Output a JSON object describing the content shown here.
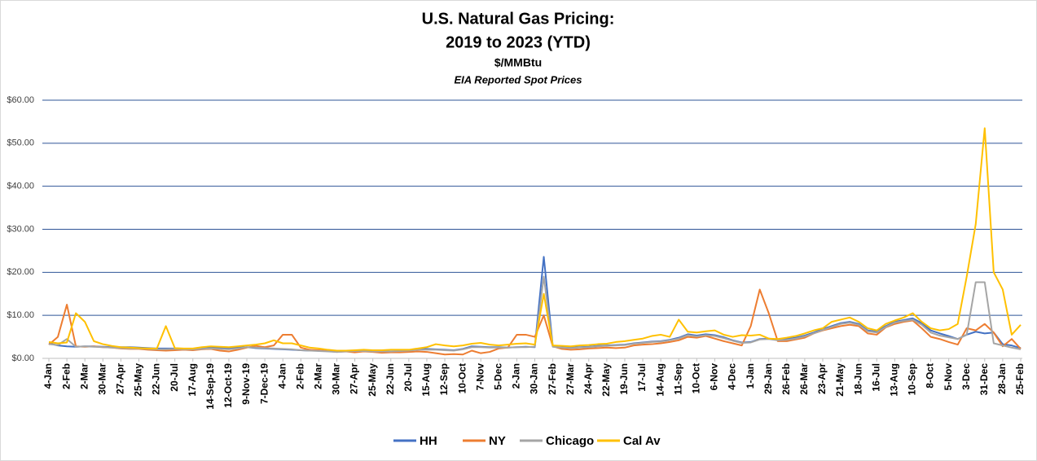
{
  "chart_data": {
    "type": "line",
    "title_lines": [
      "U.S. Natural Gas Pricing:",
      "2019 to 2023 (YTD)"
    ],
    "y_unit": "$/MMBtu",
    "subtitle": "EIA Reported Spot Prices",
    "categories": [
      "4-Jan",
      null,
      "2-Feb",
      null,
      "2-Mar",
      null,
      "30-Mar",
      null,
      "27-Apr",
      null,
      "25-May",
      null,
      "22-Jun",
      null,
      "20-Jul",
      null,
      "17-Aug",
      null,
      "14-Sep-19",
      null,
      "12-Oct-19",
      null,
      "9-Nov-19",
      null,
      "7-Dec-19",
      null,
      "4-Jan",
      null,
      "2-Feb",
      null,
      "2-Mar",
      null,
      "30-Mar",
      null,
      "27-Apr",
      null,
      "25-May",
      null,
      "22-Jun",
      null,
      "20-Jul",
      null,
      "15-Aug",
      null,
      "12-Sep",
      null,
      "10-Oct",
      null,
      "7-Nov",
      null,
      "5-Dec",
      null,
      "2-Jan",
      null,
      "30-Jan",
      null,
      "27-Feb",
      null,
      "27-Mar",
      null,
      "24-Apr",
      null,
      "22-May",
      null,
      "19-Jun",
      null,
      "17-Jul",
      null,
      "14-Aug",
      null,
      "11-Sep",
      null,
      "10-Oct",
      null,
      "6-Nov",
      null,
      "4-Dec",
      null,
      "1-Jan",
      null,
      "29-Jan",
      null,
      "26-Feb",
      null,
      "26-Mar",
      null,
      "23-Apr",
      null,
      "21-May",
      null,
      "18-Jun",
      null,
      "16-Jul",
      null,
      "13-Aug",
      null,
      "10-Sep",
      null,
      "8-Oct",
      null,
      "5-Nov",
      null,
      "3-Dec",
      null,
      "31-Dec",
      null,
      "28-Jan",
      null,
      "25-Feb"
    ],
    "series": [
      {
        "name": "HH",
        "color": "#4472c4",
        "values": [
          3.5,
          3.0,
          2.8,
          2.7,
          2.8,
          2.8,
          2.7,
          2.6,
          2.6,
          2.6,
          2.5,
          2.4,
          2.3,
          2.3,
          2.3,
          2.2,
          2.2,
          2.4,
          2.6,
          2.4,
          2.3,
          2.5,
          2.6,
          2.4,
          2.3,
          2.2,
          2.1,
          2.0,
          1.9,
          1.8,
          1.8,
          1.7,
          1.6,
          1.7,
          1.8,
          1.8,
          1.7,
          1.6,
          1.6,
          1.7,
          1.8,
          2.1,
          2.2,
          2.1,
          2.0,
          1.9,
          2.2,
          2.8,
          2.7,
          2.6,
          2.6,
          2.5,
          2.6,
          2.7,
          2.6,
          23.6,
          2.8,
          2.6,
          2.5,
          2.6,
          2.7,
          2.9,
          3.0,
          3.1,
          3.2,
          3.5,
          3.7,
          3.9,
          4.0,
          4.3,
          4.8,
          5.6,
          5.3,
          5.6,
          5.4,
          4.9,
          4.2,
          3.7,
          3.8,
          4.5,
          4.6,
          4.4,
          4.5,
          4.8,
          5.3,
          6.0,
          6.8,
          7.5,
          8.2,
          8.5,
          8.0,
          6.5,
          6.2,
          7.5,
          8.5,
          8.9,
          9.3,
          8.2,
          6.5,
          5.8,
          5.2,
          4.5,
          5.5,
          6.2,
          5.8,
          6.0,
          3.3,
          3.0,
          2.4
        ]
      },
      {
        "name": "NY",
        "color": "#ed7d31",
        "values": [
          3.2,
          5.0,
          12.5,
          2.8,
          2.7,
          2.8,
          2.6,
          2.5,
          2.3,
          2.2,
          2.2,
          2.0,
          1.9,
          1.8,
          1.9,
          2.0,
          1.9,
          2.1,
          2.2,
          1.8,
          1.6,
          2.0,
          2.5,
          2.9,
          2.6,
          3.0,
          5.5,
          5.5,
          2.5,
          2.0,
          1.9,
          1.7,
          1.5,
          1.6,
          1.4,
          1.6,
          1.5,
          1.3,
          1.4,
          1.4,
          1.5,
          1.6,
          1.5,
          1.2,
          0.9,
          1.0,
          0.9,
          1.8,
          1.2,
          1.5,
          2.3,
          2.5,
          5.5,
          5.5,
          5.0,
          10.0,
          2.8,
          2.2,
          2.0,
          2.1,
          2.3,
          2.4,
          2.5,
          2.4,
          2.5,
          3.0,
          3.2,
          3.3,
          3.5,
          3.8,
          4.2,
          5.0,
          4.8,
          5.2,
          4.6,
          4.0,
          3.5,
          3.0,
          7.5,
          16.0,
          10.5,
          4.0,
          4.0,
          4.4,
          4.8,
          5.8,
          6.5,
          7.0,
          7.5,
          7.8,
          7.5,
          5.8,
          5.5,
          7.2,
          8.0,
          8.5,
          8.8,
          7.0,
          5.0,
          4.5,
          3.8,
          3.2,
          7.0,
          6.5,
          8.0,
          6.0,
          2.8,
          4.5,
          2.2
        ]
      },
      {
        "name": "Chicago",
        "color": "#a5a5a5",
        "values": [
          3.3,
          3.1,
          4.5,
          2.7,
          2.8,
          2.7,
          2.6,
          2.5,
          2.4,
          2.3,
          2.3,
          2.2,
          2.1,
          2.1,
          2.2,
          2.1,
          2.1,
          2.2,
          2.3,
          2.2,
          2.1,
          2.3,
          2.6,
          2.5,
          2.4,
          2.3,
          2.2,
          2.1,
          1.9,
          1.8,
          1.7,
          1.6,
          1.5,
          1.6,
          1.7,
          1.7,
          1.6,
          1.6,
          1.6,
          1.7,
          1.8,
          2.0,
          2.0,
          2.0,
          1.9,
          1.8,
          2.1,
          2.6,
          2.6,
          2.5,
          2.5,
          2.5,
          2.6,
          2.6,
          2.7,
          19.0,
          2.7,
          2.5,
          2.4,
          2.5,
          2.6,
          2.8,
          2.9,
          3.0,
          3.1,
          3.4,
          3.6,
          3.8,
          3.9,
          4.2,
          4.6,
          5.4,
          5.1,
          5.4,
          5.2,
          4.7,
          4.1,
          3.6,
          3.7,
          4.4,
          4.5,
          4.2,
          4.3,
          4.6,
          5.1,
          5.8,
          6.6,
          7.3,
          8.0,
          8.3,
          7.8,
          6.3,
          6.0,
          7.3,
          8.3,
          8.7,
          9.0,
          7.8,
          6.0,
          5.3,
          4.9,
          4.5,
          5.5,
          17.7,
          17.7,
          3.5,
          3.0,
          2.5,
          2.1
        ]
      },
      {
        "name": "Cal Av",
        "color": "#ffc000",
        "values": [
          3.8,
          3.5,
          3.7,
          10.5,
          8.5,
          4.0,
          3.3,
          2.9,
          2.6,
          2.5,
          2.4,
          2.3,
          2.3,
          7.5,
          2.4,
          2.3,
          2.3,
          2.6,
          2.8,
          2.7,
          2.6,
          2.8,
          3.0,
          3.2,
          3.5,
          4.2,
          3.5,
          3.5,
          3.0,
          2.5,
          2.3,
          2.0,
          1.8,
          1.8,
          1.9,
          2.0,
          1.9,
          1.9,
          2.0,
          2.0,
          2.0,
          2.3,
          2.6,
          3.3,
          3.0,
          2.8,
          3.0,
          3.4,
          3.6,
          3.2,
          3.0,
          3.2,
          3.4,
          3.5,
          3.2,
          15.0,
          3.0,
          2.9,
          2.8,
          3.0,
          3.1,
          3.3,
          3.4,
          3.8,
          4.0,
          4.3,
          4.6,
          5.2,
          5.5,
          5.0,
          9.0,
          6.2,
          6.0,
          6.3,
          6.5,
          5.5,
          5.0,
          5.4,
          5.3,
          5.5,
          4.6,
          4.5,
          4.8,
          5.2,
          5.8,
          6.5,
          7.0,
          8.5,
          9.0,
          9.5,
          8.5,
          7.0,
          6.5,
          8.0,
          8.8,
          9.5,
          10.5,
          8.5,
          7.0,
          6.5,
          6.8,
          8.0,
          19.0,
          31.2,
          53.5,
          20.0,
          16.0,
          5.5,
          7.8
        ]
      }
    ],
    "ylim": [
      0,
      60
    ],
    "yticks": [
      {
        "value": 0,
        "label": "$0.00"
      },
      {
        "value": 10,
        "label": "$10.00"
      },
      {
        "value": 20,
        "label": "$20.00"
      },
      {
        "value": 30,
        "label": "$30.00"
      },
      {
        "value": 40,
        "label": "$40.00"
      },
      {
        "value": 50,
        "label": "$50.00"
      },
      {
        "value": 60,
        "label": "$60.00"
      }
    ],
    "grid": true,
    "legend": "bottom"
  }
}
